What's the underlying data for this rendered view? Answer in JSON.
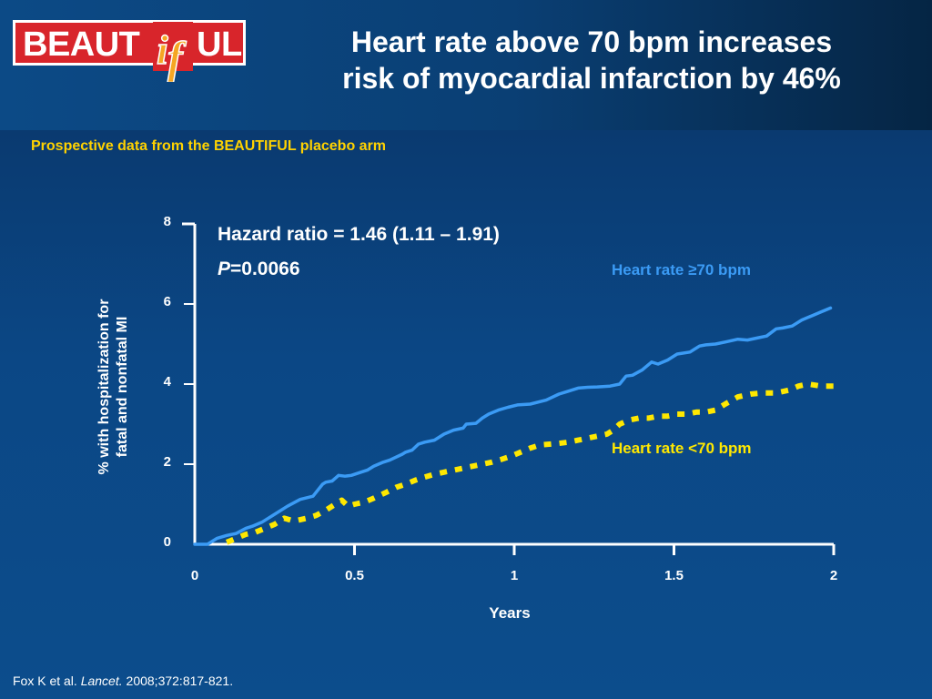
{
  "logo": {
    "text_left": "BEAUT",
    "text_right": "UL",
    "mark": "if"
  },
  "title": {
    "line1": "Heart rate above 70 bpm increases",
    "line2": "risk of myocardial infarction by 46%"
  },
  "subtitle": "Prospective data from the BEAUTIFUL placebo arm",
  "annotations": {
    "hazard": "Hazard ratio = 1.46 (1.11 – 1.91)",
    "p_label": "P",
    "p_value": "=0.0066"
  },
  "reference": {
    "authors": "Fox K et al.",
    "journal": "Lancet.",
    "citation": "2008;372:817-821."
  },
  "colors": {
    "high": "#3b9bf5",
    "low": "#ffe800",
    "subtitle": "#ffd200"
  },
  "chart_data": {
    "type": "line",
    "xlabel": "Years",
    "ylabel_line1": "% with hospitalization for",
    "ylabel_line2": "fatal and nonfatal MI",
    "xlim": [
      0,
      2
    ],
    "ylim": [
      0,
      8
    ],
    "xticks": [
      "0",
      "0.5",
      "1",
      "1.5",
      "2"
    ],
    "xtick_values": [
      0,
      0.5,
      1,
      1.5,
      2
    ],
    "yticks": [
      "0",
      "2",
      "4",
      "6",
      "8"
    ],
    "ytick_values": [
      0,
      2,
      4,
      6,
      8
    ],
    "series": [
      {
        "name": "Heart rate ≥70 bpm",
        "style": "solid",
        "x": [
          0,
          0.04,
          0.07,
          0.1,
          0.13,
          0.16,
          0.18,
          0.21,
          0.25,
          0.29,
          0.33,
          0.37,
          0.4,
          0.41,
          0.43,
          0.45,
          0.47,
          0.49,
          0.52,
          0.54,
          0.56,
          0.59,
          0.61,
          0.65,
          0.66,
          0.68,
          0.7,
          0.72,
          0.75,
          0.78,
          0.81,
          0.84,
          0.85,
          0.88,
          0.9,
          0.92,
          0.95,
          0.98,
          1.01,
          1.05,
          1.1,
          1.14,
          1.16,
          1.2,
          1.23,
          1.26,
          1.3,
          1.33,
          1.35,
          1.37,
          1.4,
          1.43,
          1.45,
          1.48,
          1.51,
          1.55,
          1.58,
          1.6,
          1.63,
          1.66,
          1.7,
          1.73,
          1.76,
          1.79,
          1.82,
          1.84,
          1.87,
          1.9,
          1.93,
          1.96,
          1.99
        ],
        "y": [
          0,
          0,
          0.15,
          0.22,
          0.27,
          0.4,
          0.45,
          0.55,
          0.75,
          0.95,
          1.12,
          1.2,
          1.5,
          1.55,
          1.58,
          1.72,
          1.7,
          1.72,
          1.8,
          1.85,
          1.95,
          2.05,
          2.1,
          2.25,
          2.3,
          2.35,
          2.5,
          2.55,
          2.6,
          2.75,
          2.85,
          2.9,
          3.0,
          3.02,
          3.15,
          3.25,
          3.35,
          3.42,
          3.48,
          3.5,
          3.6,
          3.75,
          3.8,
          3.9,
          3.92,
          3.93,
          3.95,
          4.0,
          4.2,
          4.22,
          4.35,
          4.55,
          4.5,
          4.6,
          4.75,
          4.8,
          4.95,
          4.98,
          5.0,
          5.05,
          5.12,
          5.1,
          5.15,
          5.2,
          5.38,
          5.4,
          5.45,
          5.6,
          5.7,
          5.8,
          5.9
        ]
      },
      {
        "name": "Heart rate <70 bpm",
        "style": "dotted",
        "x": [
          0.1,
          0.13,
          0.16,
          0.19,
          0.22,
          0.25,
          0.28,
          0.31,
          0.35,
          0.38,
          0.41,
          0.44,
          0.46,
          0.48,
          0.5,
          0.53,
          0.56,
          0.6,
          0.63,
          0.66,
          0.69,
          0.72,
          0.75,
          0.78,
          0.81,
          0.84,
          0.87,
          0.9,
          0.93,
          0.96,
          0.99,
          1.02,
          1.05,
          1.08,
          1.11,
          1.14,
          1.17,
          1.2,
          1.23,
          1.26,
          1.29,
          1.31,
          1.33,
          1.36,
          1.39,
          1.42,
          1.45,
          1.48,
          1.51,
          1.54,
          1.57,
          1.6,
          1.63,
          1.66,
          1.7,
          1.74,
          1.78,
          1.82,
          1.86,
          1.89,
          1.92,
          1.96,
          2.0
        ],
        "y": [
          0.05,
          0.15,
          0.25,
          0.3,
          0.4,
          0.5,
          0.65,
          0.58,
          0.65,
          0.72,
          0.85,
          1.0,
          1.1,
          0.95,
          1.0,
          1.05,
          1.15,
          1.3,
          1.42,
          1.5,
          1.6,
          1.68,
          1.75,
          1.8,
          1.85,
          1.9,
          1.95,
          2.0,
          2.05,
          2.12,
          2.2,
          2.3,
          2.4,
          2.48,
          2.5,
          2.52,
          2.55,
          2.6,
          2.65,
          2.7,
          2.75,
          2.85,
          3.0,
          3.1,
          3.15,
          3.15,
          3.2,
          3.2,
          3.25,
          3.25,
          3.3,
          3.3,
          3.35,
          3.5,
          3.68,
          3.75,
          3.78,
          3.78,
          3.85,
          3.95,
          4.0,
          3.95,
          3.95
        ]
      }
    ]
  }
}
